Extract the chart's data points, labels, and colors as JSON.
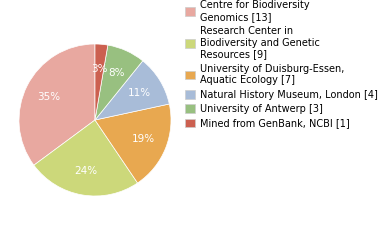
{
  "labels": [
    "Centre for Biodiversity\nGenomics [13]",
    "Research Center in\nBiodiversity and Genetic\nResources [9]",
    "University of Duisburg-Essen,\nAquatic Ecology [7]",
    "Natural History Museum, London [4]",
    "University of Antwerp [3]",
    "Mined from GenBank, NCBI [1]"
  ],
  "values": [
    13,
    9,
    7,
    4,
    3,
    1
  ],
  "colors": [
    "#e8a8a0",
    "#ccd87a",
    "#e8a850",
    "#a8bcd8",
    "#98c080",
    "#cc6050"
  ],
  "startangle": 90,
  "legend_fontsize": 7,
  "autopct_fontsize": 7.5
}
